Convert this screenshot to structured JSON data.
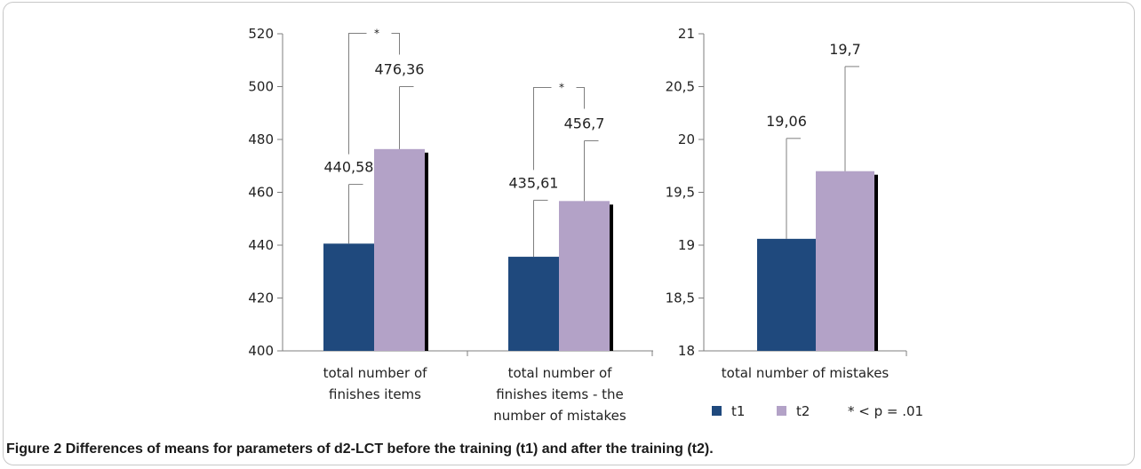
{
  "figure": {
    "label": "Figure 2",
    "caption": "Differences of means for parameters of d2-LCT before the training (t1) and after the training (t2)."
  },
  "colors": {
    "t1": "#1f497d",
    "t2": "#b3a2c7",
    "shadow": "#000000",
    "axis": "#7f7f7f"
  },
  "legend": {
    "items": [
      {
        "name": "t1",
        "color": "#1f497d"
      },
      {
        "name": "t2",
        "color": "#b3a2c7"
      }
    ],
    "note": "* < p = .01",
    "placement": "bottom-right"
  },
  "chart_data": [
    {
      "type": "bar",
      "categories": [
        [
          "total number of",
          "finishes items"
        ],
        [
          "total number of",
          "finishes items - the",
          "number of mistakes"
        ]
      ],
      "series": [
        {
          "name": "t1",
          "values": [
            440.58,
            435.61
          ],
          "error_upper": [
            463,
            457
          ]
        },
        {
          "name": "t2",
          "values": [
            476.36,
            456.7
          ],
          "error_upper": [
            500,
            479.5
          ]
        }
      ],
      "data_labels": [
        [
          "440,58",
          "435,61"
        ],
        [
          "476,36",
          "456,7"
        ]
      ],
      "significance": [
        "*",
        "*"
      ],
      "ylim": [
        400,
        520
      ],
      "yticks": [
        "400",
        "420",
        "440",
        "460",
        "480",
        "500",
        "520"
      ],
      "ytick_values": [
        400,
        420,
        440,
        460,
        480,
        500,
        520
      ]
    },
    {
      "type": "bar",
      "categories": [
        [
          "total number of mistakes"
        ]
      ],
      "series": [
        {
          "name": "t1",
          "values": [
            19.06
          ],
          "error_upper": [
            20.01
          ]
        },
        {
          "name": "t2",
          "values": [
            19.7
          ],
          "error_upper": [
            20.69
          ]
        }
      ],
      "data_labels": [
        [
          "19,06"
        ],
        [
          "19,7"
        ]
      ],
      "ylim": [
        18,
        21
      ],
      "yticks": [
        "18",
        "18,5",
        "19",
        "19,5",
        "20",
        "20,5",
        "21"
      ],
      "ytick_values": [
        18,
        18.5,
        19,
        19.5,
        20,
        20.5,
        21
      ]
    }
  ]
}
